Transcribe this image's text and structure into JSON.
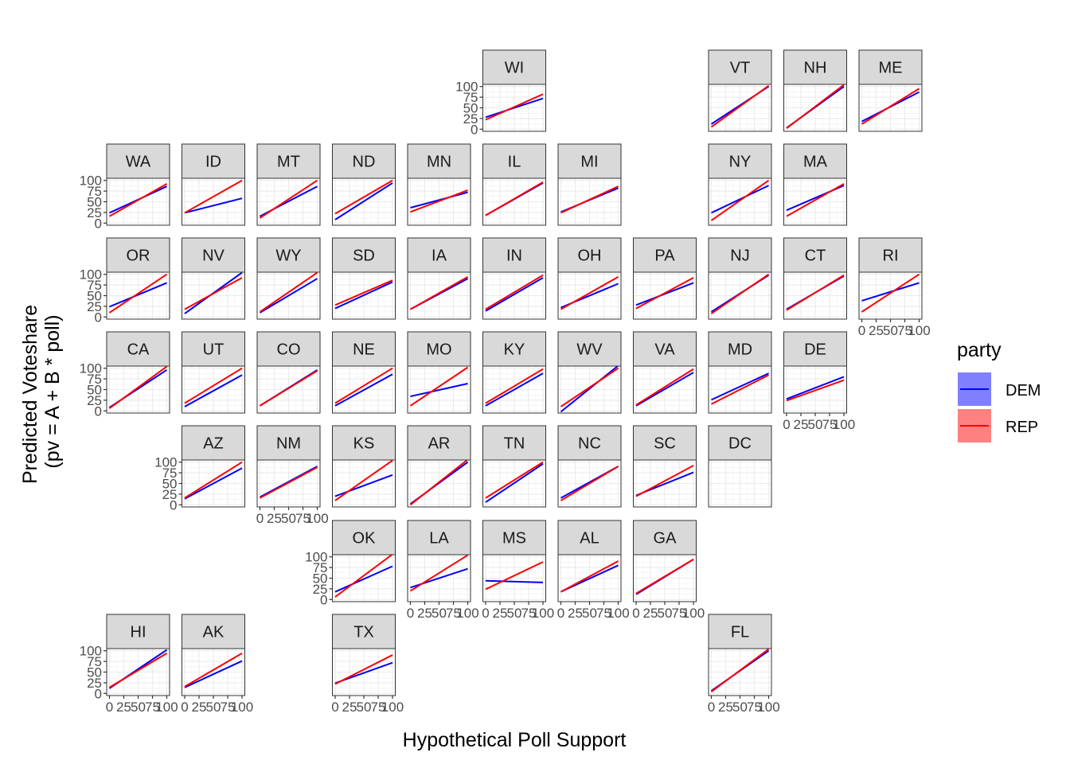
{
  "chart_data": {
    "type": "line",
    "xlabel": "Hypothetical Poll Support",
    "ylabel_lines": [
      "Predicted Voteshare",
      "(pv = A + B * poll)"
    ],
    "xlim": [
      0,
      100
    ],
    "ylim": [
      0,
      100
    ],
    "y_ticks": [
      "0",
      "25",
      "50",
      "75",
      "100"
    ],
    "x_ticks": [
      "0",
      "25",
      "50",
      "75",
      "100"
    ],
    "legend": {
      "title": "party",
      "position": "right",
      "entries": [
        {
          "name": "DEM",
          "color": "#0000ff"
        },
        {
          "name": "REP",
          "color": "#ff0000"
        }
      ]
    },
    "panels": [
      {
        "state": "WI",
        "col": 5,
        "row": 0,
        "dem": [
          28,
          72
        ],
        "rep": [
          22,
          82
        ],
        "y_axis": true,
        "x_axis": false
      },
      {
        "state": "VT",
        "col": 8,
        "row": 0,
        "dem": [
          12,
          100
        ],
        "rep": [
          5,
          102
        ],
        "y_axis": false,
        "x_axis": false
      },
      {
        "state": "NH",
        "col": 9,
        "row": 0,
        "dem": [
          3,
          100
        ],
        "rep": [
          2,
          104
        ],
        "y_axis": false,
        "x_axis": false
      },
      {
        "state": "ME",
        "col": 10,
        "row": 0,
        "dem": [
          18,
          87
        ],
        "rep": [
          12,
          95
        ],
        "y_axis": false,
        "x_axis": false
      },
      {
        "state": "WA",
        "col": 0,
        "row": 1,
        "dem": [
          24,
          86
        ],
        "rep": [
          16,
          92
        ],
        "y_axis": true,
        "x_axis": false
      },
      {
        "state": "ID",
        "col": 1,
        "row": 1,
        "dem": [
          24,
          58
        ],
        "rep": [
          24,
          100
        ],
        "y_axis": false,
        "x_axis": false
      },
      {
        "state": "MT",
        "col": 2,
        "row": 1,
        "dem": [
          16,
          86
        ],
        "rep": [
          12,
          100
        ],
        "y_axis": false,
        "x_axis": false
      },
      {
        "state": "ND",
        "col": 3,
        "row": 1,
        "dem": [
          8,
          94
        ],
        "rep": [
          22,
          100
        ],
        "y_axis": false,
        "x_axis": false
      },
      {
        "state": "MN",
        "col": 4,
        "row": 1,
        "dem": [
          36,
          72
        ],
        "rep": [
          26,
          77
        ],
        "y_axis": false,
        "x_axis": false
      },
      {
        "state": "IL",
        "col": 5,
        "row": 1,
        "dem": [
          18,
          94
        ],
        "rep": [
          18,
          96
        ],
        "y_axis": false,
        "x_axis": false
      },
      {
        "state": "MI",
        "col": 6,
        "row": 1,
        "dem": [
          26,
          82
        ],
        "rep": [
          24,
          86
        ],
        "y_axis": false,
        "x_axis": false
      },
      {
        "state": "NY",
        "col": 8,
        "row": 1,
        "dem": [
          24,
          88
        ],
        "rep": [
          6,
          100
        ],
        "y_axis": false,
        "x_axis": false
      },
      {
        "state": "MA",
        "col": 9,
        "row": 1,
        "dem": [
          30,
          88
        ],
        "rep": [
          16,
          92
        ],
        "y_axis": false,
        "x_axis": false
      },
      {
        "state": "OR",
        "col": 0,
        "row": 2,
        "dem": [
          24,
          80
        ],
        "rep": [
          10,
          100
        ],
        "y_axis": true,
        "x_axis": false
      },
      {
        "state": "NV",
        "col": 1,
        "row": 2,
        "dem": [
          8,
          104
        ],
        "rep": [
          18,
          92
        ],
        "y_axis": false,
        "x_axis": false
      },
      {
        "state": "WY",
        "col": 2,
        "row": 2,
        "dem": [
          10,
          90
        ],
        "rep": [
          12,
          104
        ],
        "y_axis": false,
        "x_axis": false
      },
      {
        "state": "SD",
        "col": 3,
        "row": 2,
        "dem": [
          20,
          82
        ],
        "rep": [
          28,
          86
        ],
        "y_axis": false,
        "x_axis": false
      },
      {
        "state": "IA",
        "col": 4,
        "row": 2,
        "dem": [
          18,
          90
        ],
        "rep": [
          18,
          94
        ],
        "y_axis": false,
        "x_axis": false
      },
      {
        "state": "IN",
        "col": 5,
        "row": 2,
        "dem": [
          14,
          92
        ],
        "rep": [
          18,
          98
        ],
        "y_axis": false,
        "x_axis": false
      },
      {
        "state": "OH",
        "col": 6,
        "row": 2,
        "dem": [
          22,
          78
        ],
        "rep": [
          18,
          94
        ],
        "y_axis": false,
        "x_axis": false
      },
      {
        "state": "PA",
        "col": 7,
        "row": 2,
        "dem": [
          28,
          80
        ],
        "rep": [
          20,
          92
        ],
        "y_axis": false,
        "x_axis": false
      },
      {
        "state": "NJ",
        "col": 8,
        "row": 2,
        "dem": [
          12,
          98
        ],
        "rep": [
          8,
          100
        ],
        "y_axis": false,
        "x_axis": false
      },
      {
        "state": "CT",
        "col": 9,
        "row": 2,
        "dem": [
          18,
          96
        ],
        "rep": [
          16,
          98
        ],
        "y_axis": false,
        "x_axis": false
      },
      {
        "state": "RI",
        "col": 10,
        "row": 2,
        "dem": [
          38,
          80
        ],
        "rep": [
          12,
          100
        ],
        "y_axis": false,
        "x_axis": true
      },
      {
        "state": "CA",
        "col": 0,
        "row": 3,
        "dem": [
          8,
          96
        ],
        "rep": [
          6,
          104
        ],
        "y_axis": true,
        "x_axis": false
      },
      {
        "state": "UT",
        "col": 1,
        "row": 3,
        "dem": [
          10,
          84
        ],
        "rep": [
          18,
          100
        ],
        "y_axis": false,
        "x_axis": false
      },
      {
        "state": "CO",
        "col": 2,
        "row": 3,
        "dem": [
          12,
          96
        ],
        "rep": [
          12,
          94
        ],
        "y_axis": false,
        "x_axis": false
      },
      {
        "state": "NE",
        "col": 3,
        "row": 3,
        "dem": [
          12,
          86
        ],
        "rep": [
          18,
          100
        ],
        "y_axis": false,
        "x_axis": false
      },
      {
        "state": "MO",
        "col": 4,
        "row": 3,
        "dem": [
          34,
          64
        ],
        "rep": [
          12,
          102
        ],
        "y_axis": false,
        "x_axis": false
      },
      {
        "state": "KY",
        "col": 5,
        "row": 3,
        "dem": [
          12,
          88
        ],
        "rep": [
          18,
          98
        ],
        "y_axis": false,
        "x_axis": false
      },
      {
        "state": "WV",
        "col": 6,
        "row": 3,
        "dem": [
          -2,
          106
        ],
        "rep": [
          10,
          100
        ],
        "y_axis": false,
        "x_axis": false
      },
      {
        "state": "VA",
        "col": 7,
        "row": 3,
        "dem": [
          12,
          90
        ],
        "rep": [
          14,
          98
        ],
        "y_axis": false,
        "x_axis": false
      },
      {
        "state": "MD",
        "col": 8,
        "row": 3,
        "dem": [
          26,
          88
        ],
        "rep": [
          16,
          84
        ],
        "y_axis": false,
        "x_axis": false
      },
      {
        "state": "DE",
        "col": 9,
        "row": 3,
        "dem": [
          28,
          80
        ],
        "rep": [
          24,
          72
        ],
        "y_axis": false,
        "x_axis": true
      },
      {
        "state": "AZ",
        "col": 1,
        "row": 4,
        "dem": [
          14,
          86
        ],
        "rep": [
          16,
          100
        ],
        "y_axis": true,
        "x_axis": false
      },
      {
        "state": "NM",
        "col": 2,
        "row": 4,
        "dem": [
          18,
          90
        ],
        "rep": [
          16,
          88
        ],
        "y_axis": false,
        "x_axis": true
      },
      {
        "state": "KS",
        "col": 3,
        "row": 4,
        "dem": [
          20,
          70
        ],
        "rep": [
          10,
          104
        ],
        "y_axis": false,
        "x_axis": false
      },
      {
        "state": "AR",
        "col": 4,
        "row": 4,
        "dem": [
          2,
          100
        ],
        "rep": [
          0,
          106
        ],
        "y_axis": false,
        "x_axis": false
      },
      {
        "state": "TN",
        "col": 5,
        "row": 4,
        "dem": [
          6,
          96
        ],
        "rep": [
          16,
          100
        ],
        "y_axis": false,
        "x_axis": false
      },
      {
        "state": "NC",
        "col": 6,
        "row": 4,
        "dem": [
          16,
          90
        ],
        "rep": [
          10,
          90
        ],
        "y_axis": false,
        "x_axis": false
      },
      {
        "state": "SC",
        "col": 7,
        "row": 4,
        "dem": [
          22,
          76
        ],
        "rep": [
          20,
          92
        ],
        "y_axis": false,
        "x_axis": false
      },
      {
        "state": "DC",
        "col": 8,
        "row": 4,
        "dem": null,
        "rep": null,
        "y_axis": false,
        "x_axis": false
      },
      {
        "state": "OK",
        "col": 3,
        "row": 5,
        "dem": [
          18,
          78
        ],
        "rep": [
          6,
          106
        ],
        "y_axis": true,
        "x_axis": false
      },
      {
        "state": "LA",
        "col": 4,
        "row": 5,
        "dem": [
          28,
          72
        ],
        "rep": [
          20,
          104
        ],
        "y_axis": false,
        "x_axis": true
      },
      {
        "state": "MS",
        "col": 5,
        "row": 5,
        "dem": [
          44,
          40
        ],
        "rep": [
          24,
          88
        ],
        "y_axis": false,
        "x_axis": true
      },
      {
        "state": "AL",
        "col": 6,
        "row": 5,
        "dem": [
          18,
          80
        ],
        "rep": [
          18,
          90
        ],
        "y_axis": false,
        "x_axis": true
      },
      {
        "state": "GA",
        "col": 7,
        "row": 5,
        "dem": [
          12,
          94
        ],
        "rep": [
          14,
          94
        ],
        "y_axis": false,
        "x_axis": true
      },
      {
        "state": "HI",
        "col": 0,
        "row": 6,
        "dem": [
          12,
          102
        ],
        "rep": [
          14,
          94
        ],
        "y_axis": true,
        "x_axis": true
      },
      {
        "state": "AK",
        "col": 1,
        "row": 6,
        "dem": [
          14,
          76
        ],
        "rep": [
          16,
          94
        ],
        "y_axis": false,
        "x_axis": true
      },
      {
        "state": "TX",
        "col": 3,
        "row": 6,
        "dem": [
          24,
          72
        ],
        "rep": [
          22,
          90
        ],
        "y_axis": false,
        "x_axis": true
      },
      {
        "state": "FL",
        "col": 8,
        "row": 6,
        "dem": [
          6,
          100
        ],
        "rep": [
          4,
          104
        ],
        "y_axis": false,
        "x_axis": true
      }
    ]
  }
}
